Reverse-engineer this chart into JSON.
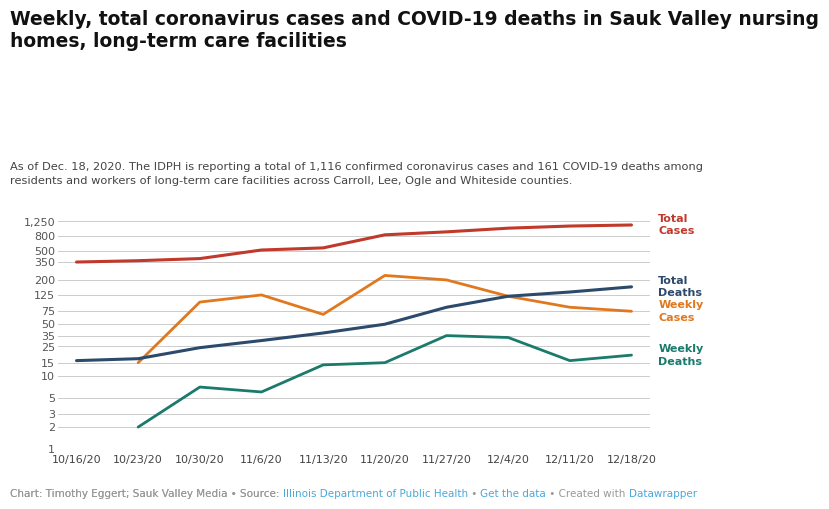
{
  "title": "Weekly, total coronavirus cases and COVID-19 deaths in Sauk Valley nursing\nhomes, long-term care facilities",
  "subtitle": "As of Dec. 18, 2020. The IDPH is reporting a total of 1,116 confirmed coronavirus cases and 161 COVID-19 deaths among\nresidents and workers of long-term care facilities across Carroll, Lee, Ogle and Whiteside counties.",
  "footer_plain": "Chart: Timothy Eggert; Sauk Valley Media • Source: ",
  "footer_link1": "Illinois Department of Public Health",
  "footer_mid1": " • ",
  "footer_link2": "Get the data",
  "footer_mid2": " • Created with ",
  "footer_link3": "Datawrapper",
  "x_labels": [
    "10/16/20",
    "10/23/20",
    "10/30/20",
    "11/6/20",
    "11/13/20",
    "11/20/20",
    "11/27/20",
    "12/4/20",
    "12/11/20",
    "12/18/20"
  ],
  "total_cases": [
    350,
    365,
    390,
    510,
    545,
    820,
    900,
    1010,
    1080,
    1116
  ],
  "total_deaths": [
    16,
    17,
    24,
    30,
    38,
    50,
    85,
    120,
    137,
    161
  ],
  "weekly_cases_x": [
    1,
    2,
    3,
    4,
    5,
    6,
    7,
    8,
    9
  ],
  "weekly_cases_y": [
    15,
    100,
    125,
    68,
    230,
    200,
    120,
    85,
    75
  ],
  "weekly_deaths_x": [
    1,
    2,
    3,
    4,
    5,
    6,
    7,
    8,
    9
  ],
  "weekly_deaths_y": [
    2,
    7,
    6,
    14,
    15,
    35,
    33,
    16,
    19
  ],
  "color_total_cases": "#c0392b",
  "color_total_deaths": "#2c4a6b",
  "color_weekly_cases": "#e07820",
  "color_weekly_deaths": "#1a7a6b",
  "bg_color": "#ffffff",
  "grid_color": "#cccccc",
  "yticks": [
    1,
    2,
    3,
    5,
    10,
    15,
    25,
    35,
    50,
    75,
    125,
    200,
    350,
    500,
    800,
    1250
  ],
  "ymin": 1,
  "ymax": 1500,
  "label_total_cases": "Total\nCases",
  "label_total_deaths": "Total\nDeaths",
  "label_weekly_cases": "Weekly\nCases",
  "label_weekly_deaths": "Weekly\nDeaths"
}
